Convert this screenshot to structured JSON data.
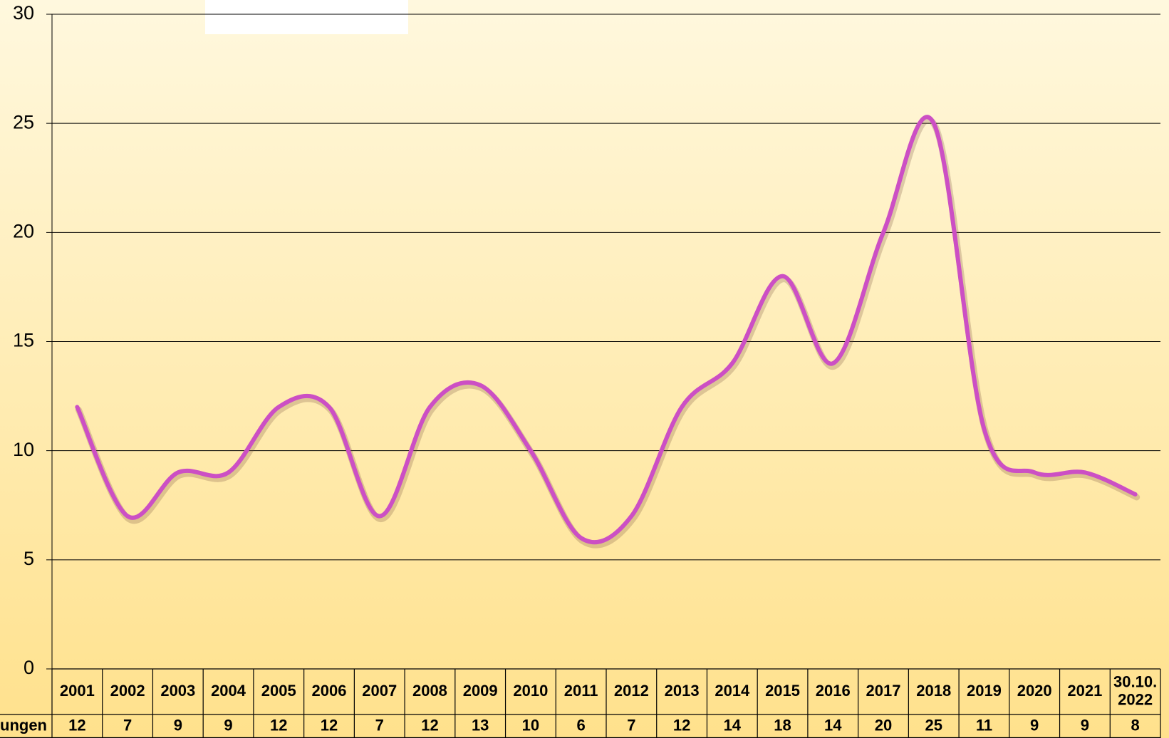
{
  "chart_data": {
    "type": "line",
    "categories": [
      "2001",
      "2002",
      "2003",
      "2004",
      "2005",
      "2006",
      "2007",
      "2008",
      "2009",
      "2010",
      "2011",
      "2012",
      "2013",
      "2014",
      "2015",
      "2016",
      "2017",
      "2018",
      "2019",
      "2020",
      "2021",
      "30.10.\n2022"
    ],
    "series": [
      {
        "name": "ungen",
        "color": "#cc4fc4",
        "values": [
          12,
          7,
          9,
          9,
          12,
          12,
          7,
          12,
          13,
          10,
          6,
          7,
          12,
          14,
          18,
          14,
          20,
          25,
          11,
          9,
          9,
          8
        ]
      }
    ],
    "ylim": [
      0,
      30
    ],
    "yticks": [
      0,
      5,
      10,
      15,
      20,
      25,
      30
    ],
    "grid": true,
    "smooth": true
  }
}
